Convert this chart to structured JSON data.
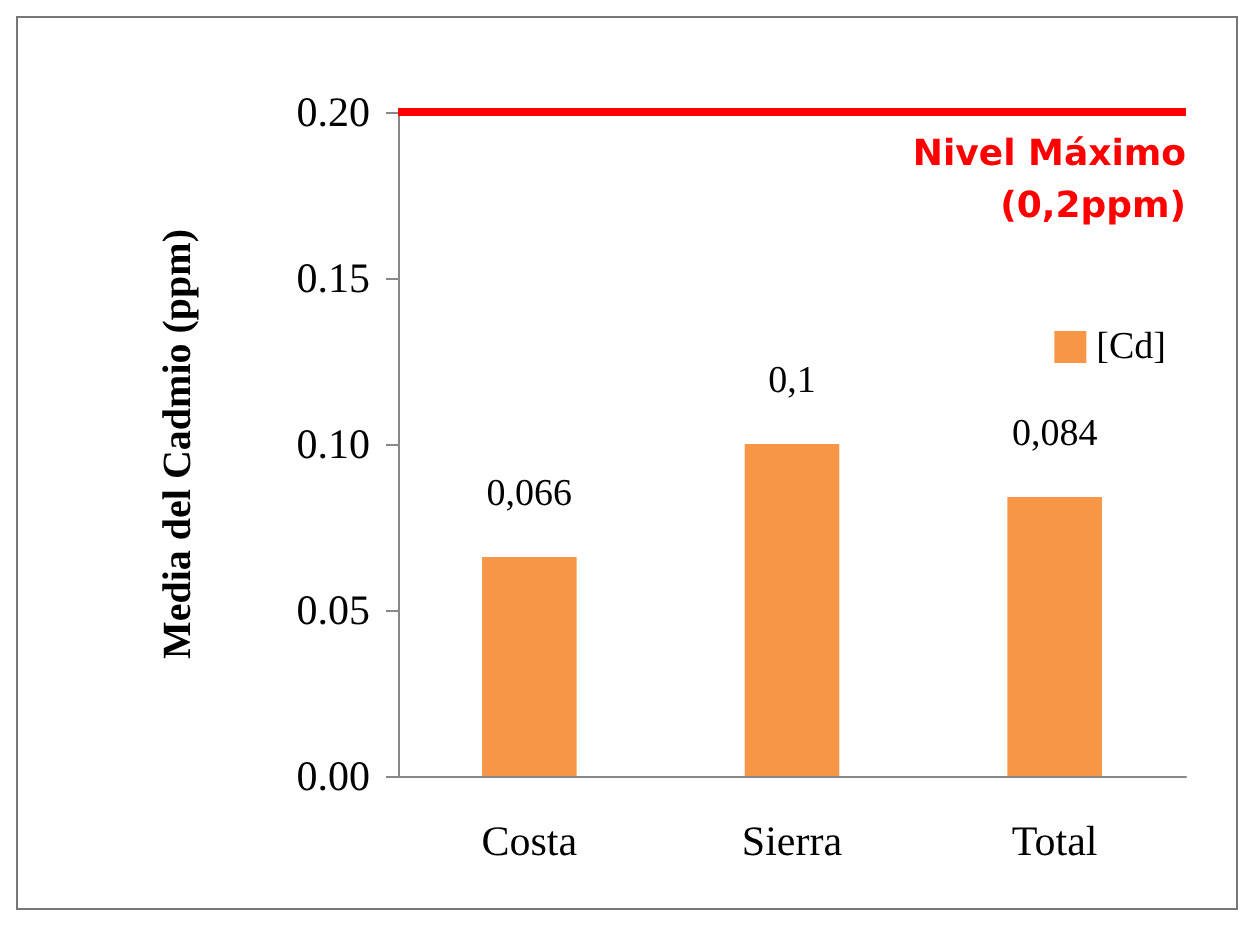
{
  "chart_data": {
    "type": "bar",
    "ylabel": "Media del Cadmio (ppm)",
    "categories": [
      "Costa",
      "Sierra",
      "Total"
    ],
    "series": [
      {
        "name": "[Cd]",
        "color": "#f79646",
        "values": [
          0.066,
          0.1,
          0.084
        ],
        "value_labels": [
          "0,066",
          "0,1",
          "0,084"
        ]
      }
    ],
    "ylim": [
      0,
      0.2
    ],
    "yticks": [
      {
        "value": 0,
        "label": "0.00"
      },
      {
        "value": 0.05,
        "label": "0.05"
      },
      {
        "value": 0.1,
        "label": "0.10"
      },
      {
        "value": 0.15,
        "label": "0.15"
      },
      {
        "value": 0.2,
        "label": "0.20"
      }
    ],
    "ref_lines": [
      {
        "axis": "y",
        "value": 0.2,
        "label": "Nivel Máximo\n(0,2ppm)",
        "color": "#ff0000"
      }
    ],
    "grid": false,
    "legend": "top right"
  }
}
